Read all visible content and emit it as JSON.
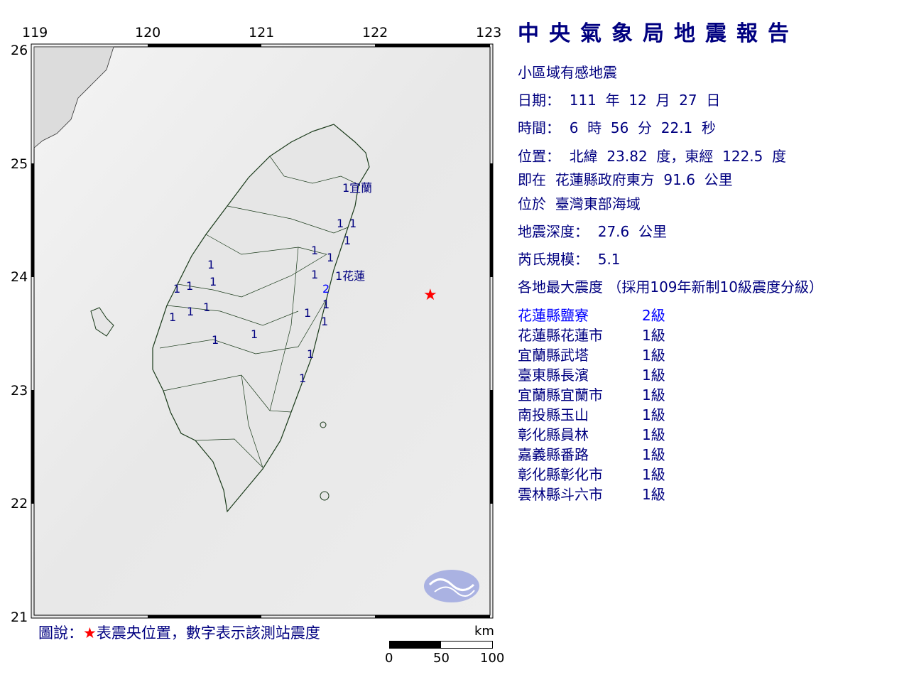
{
  "map": {
    "lon_ticks": [
      "119",
      "120",
      "121",
      "122",
      "123"
    ],
    "lat_ticks": [
      "26",
      "25",
      "24",
      "23",
      "22",
      "21"
    ],
    "station_labels": [
      {
        "value": "1",
        "name": "宜蘭"
      },
      {
        "value": "1",
        "name": "花蓮"
      },
      {
        "value": "2",
        "name": ""
      },
      {
        "value": "1",
        "name": ""
      },
      {
        "value": "1",
        "name": ""
      },
      {
        "value": "1",
        "name": ""
      },
      {
        "value": "1",
        "name": ""
      },
      {
        "value": "1",
        "name": ""
      },
      {
        "value": "1",
        "name": ""
      },
      {
        "value": "1",
        "name": ""
      },
      {
        "value": "1",
        "name": ""
      },
      {
        "value": "1",
        "name": ""
      },
      {
        "value": "1",
        "name": ""
      },
      {
        "value": "1",
        "name": ""
      },
      {
        "value": "1",
        "name": ""
      },
      {
        "value": "1",
        "name": ""
      },
      {
        "value": "1",
        "name": ""
      },
      {
        "value": "1",
        "name": ""
      },
      {
        "value": "1",
        "name": ""
      },
      {
        "value": "1",
        "name": ""
      },
      {
        "value": "1",
        "name": ""
      },
      {
        "value": "1",
        "name": ""
      },
      {
        "value": "1",
        "name": ""
      }
    ],
    "epicenter_icon": "red-star-icon",
    "logo": "cwb-logo"
  },
  "legend": {
    "prefix": "圖說：",
    "star": "★",
    "text": "表震央位置，數字表示該測站震度"
  },
  "scale": {
    "unit": "km",
    "labels": [
      "0",
      "50",
      "100"
    ]
  },
  "report": {
    "title": "中央氣象局地震報告",
    "type": "小區域有感地震",
    "date": "日期：  111  年  12  月  27  日",
    "time": "時間：  6  時  56  分  22.1  秒",
    "location": "位置：  北緯  23.82  度，東經  122.5  度",
    "relative": "即在  花蓮縣政府東方  91.6  公里",
    "region": "位於  臺灣東部海域",
    "depth": "地震深度：  27.6  公里",
    "magnitude": "芮氏規模：  5.1",
    "intensity_header": "各地最大震度 （採用109年新制10級震度分級）",
    "intensities": [
      {
        "place": "花蓮縣鹽寮",
        "level": "2級",
        "highlight": true
      },
      {
        "place": "花蓮縣花蓮市",
        "level": "1級"
      },
      {
        "place": "宜蘭縣武塔",
        "level": "1級"
      },
      {
        "place": "臺東縣長濱",
        "level": "1級"
      },
      {
        "place": "宜蘭縣宜蘭市",
        "level": "1級"
      },
      {
        "place": "南投縣玉山",
        "level": "1級"
      },
      {
        "place": "彰化縣員林",
        "level": "1級"
      },
      {
        "place": "嘉義縣番路",
        "level": "1級"
      },
      {
        "place": "彰化縣彰化市",
        "level": "1級"
      },
      {
        "place": "雲林縣斗六市",
        "level": "1級"
      }
    ]
  },
  "colors": {
    "text": "#000080",
    "highlight": "#0000ff",
    "epicenter": "#ff0000"
  }
}
